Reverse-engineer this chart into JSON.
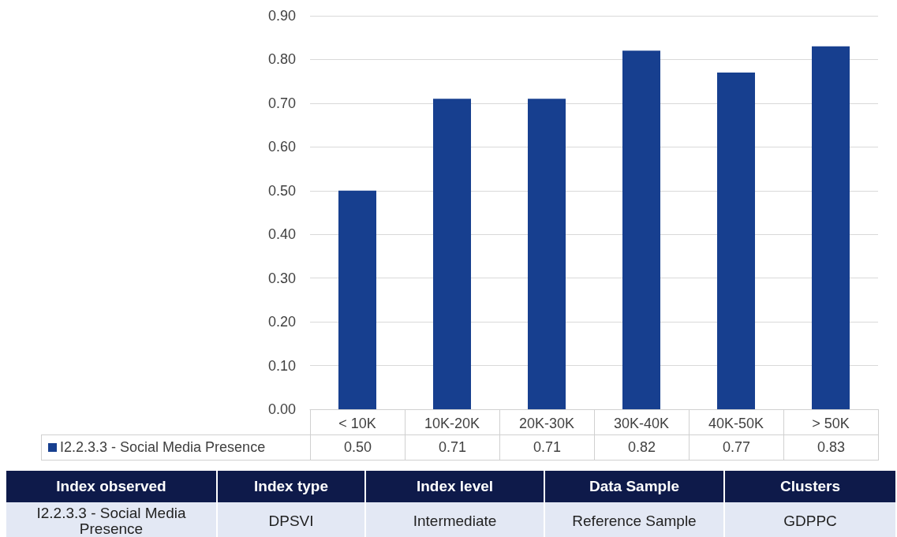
{
  "chart_data": {
    "type": "bar",
    "categories": [
      "< 10K",
      "10K-20K",
      "20K-30K",
      "30K-40K",
      "40K-50K",
      "> 50K"
    ],
    "series": [
      {
        "name": "I2.2.3.3 - Social Media Presence",
        "color": "#173f8f",
        "values": [
          0.5,
          0.71,
          0.71,
          0.82,
          0.77,
          0.83
        ],
        "value_labels": [
          "0.50",
          "0.71",
          "0.71",
          "0.82",
          "0.77",
          "0.83"
        ]
      }
    ],
    "ylim": [
      0,
      0.9
    ],
    "yticks": [
      {
        "value": 0,
        "label": "0.00"
      },
      {
        "value": 0.1,
        "label": "0.10"
      },
      {
        "value": 0.2,
        "label": "0.20"
      },
      {
        "value": 0.3,
        "label": "0.30"
      },
      {
        "value": 0.4,
        "label": "0.40"
      },
      {
        "value": 0.5,
        "label": "0.50"
      },
      {
        "value": 0.6,
        "label": "0.60"
      },
      {
        "value": 0.7,
        "label": "0.70"
      },
      {
        "value": 0.8,
        "label": "0.80"
      },
      {
        "value": 0.9,
        "label": "0.90"
      }
    ],
    "grid": "y",
    "legend": "bottom",
    "annotations": [
      "Index observed",
      "Index type",
      "Index level",
      "Data Sample",
      "Clusters",
      "I2.2.3.3 - Social Media Presence",
      "DPSVI",
      "Intermediate",
      "Reference Sample",
      "GDPPC"
    ]
  }
}
